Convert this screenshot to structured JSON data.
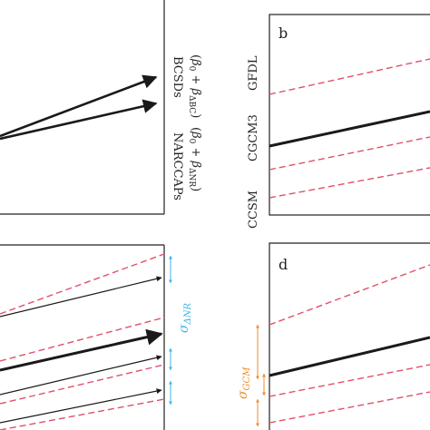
{
  "panels": {
    "a": {
      "labels": {
        "bcsds": "BCSDs",
        "bcsds_formula": "(β₀ + β_ΔBC)",
        "narccaps": "NARCCAPs",
        "narccaps_formula": "(β₀ + β_ΔNR)"
      }
    },
    "b": {
      "letter": "b",
      "model_labels": [
        "GFDL",
        "CGCM3",
        "CCSM"
      ]
    },
    "c": {
      "sigma_label": "σ_ΔNR"
    },
    "d": {
      "letter": "d",
      "sigma_label": "σ_GCM"
    }
  },
  "colors": {
    "dashed_red": "#e0506a",
    "arrow_black": "#1a1a1a",
    "sigma_blue": "#3fb6e6",
    "sigma_orange": "#f28c28"
  }
}
